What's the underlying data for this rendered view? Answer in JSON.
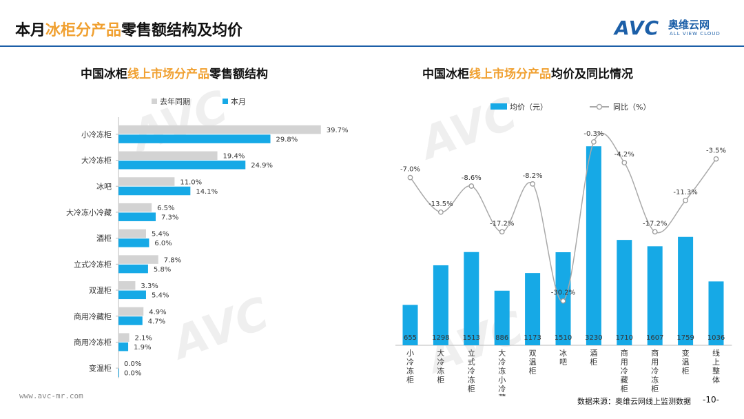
{
  "header": {
    "title_pre": "本月",
    "title_hl": "冰柜分产品",
    "title_post": "零售额结构及均价"
  },
  "logo": {
    "mark": "AVC",
    "cn": "奥维云网",
    "en": "ALL VIEW CLOUD"
  },
  "watermark": "AVC",
  "left_title": {
    "pre": "中国冰柜",
    "hl": "线上市场分产品",
    "post": "零售额结构"
  },
  "right_title": {
    "pre": "中国冰柜",
    "hl": "线上市场分产品",
    "post": "均价及同比情况"
  },
  "footer": {
    "url": "www.avc-mr.com",
    "source": "数据来源：奥维云网线上监测数据",
    "page": "-10-"
  },
  "chart_data": [
    {
      "type": "bar",
      "orientation": "horizontal",
      "categories": [
        "小冷冻柜",
        "大冷冻柜",
        "冰吧",
        "大冷冻小冷藏",
        "酒柜",
        "立式冷冻柜",
        "双温柜",
        "商用冷藏柜",
        "商用冷冻柜",
        "变温柜"
      ],
      "series": [
        {
          "name": "去年同期",
          "color": "#d3d3d3",
          "values": [
            39.7,
            19.4,
            11.0,
            6.5,
            5.4,
            7.8,
            3.3,
            4.9,
            2.1,
            0.0
          ]
        },
        {
          "name": "本月",
          "color": "#16a9e6",
          "values": [
            29.8,
            24.9,
            14.1,
            7.3,
            6.0,
            5.8,
            5.4,
            4.7,
            1.9,
            0.0
          ]
        }
      ],
      "legend_position": "top-left",
      "value_suffix": "%"
    },
    {
      "type": "bar+line",
      "categories": [
        "小冷冻柜",
        "大冷冻柜",
        "立式冷冻柜",
        "大冷冻小冷藏",
        "双温柜",
        "冰吧",
        "酒柜",
        "商用冷藏柜",
        "商用冷冻柜",
        "变温柜",
        "线上整体"
      ],
      "bar_series": {
        "name": "均价（元）",
        "color": "#16a9e6",
        "values": [
          655,
          1298,
          1513,
          886,
          1173,
          1510,
          3230,
          1710,
          1607,
          1759,
          1036
        ]
      },
      "line_series": {
        "name": "同比（%）",
        "color": "#a9a9a9",
        "values": [
          -7.0,
          -13.5,
          -8.6,
          -17.2,
          -8.2,
          -30.2,
          -0.3,
          -4.2,
          -17.2,
          -11.3,
          -3.5
        ]
      },
      "legend_position": "top"
    }
  ]
}
